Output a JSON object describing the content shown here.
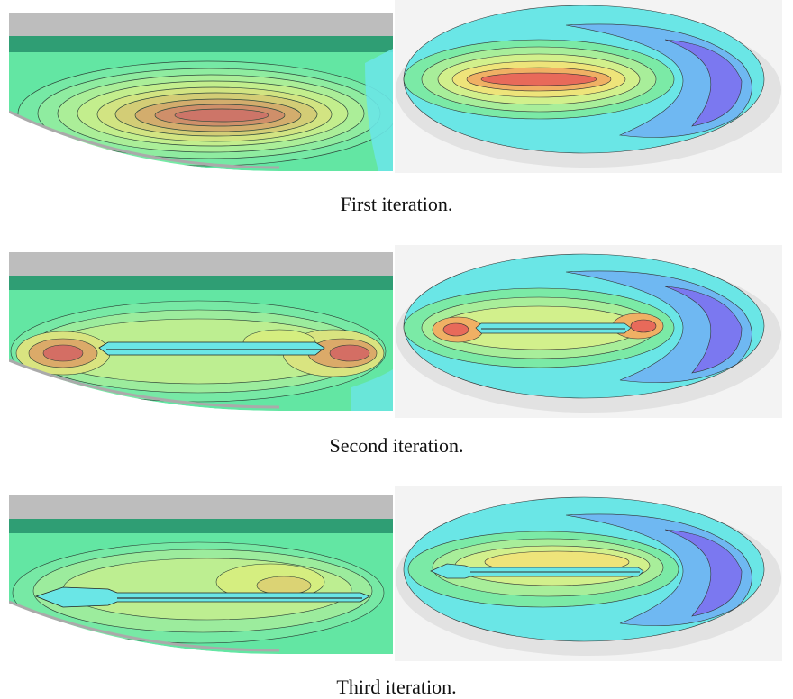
{
  "figure": {
    "rows": [
      {
        "caption": "First iteration.",
        "left_view": "side-section-contour",
        "right_view": "top-plan-contour",
        "crack": "none"
      },
      {
        "caption": "Second iteration.",
        "left_view": "side-section-contour",
        "right_view": "top-plan-contour",
        "crack": "long"
      },
      {
        "caption": "Third iteration.",
        "left_view": "side-section-contour",
        "right_view": "top-plan-contour",
        "crack": "long-hooked"
      }
    ],
    "colors": {
      "background": "#ffffff",
      "shell_gray": "#bdbdbd",
      "rim_band": "#2f9e74",
      "field_green": "#63e6a3",
      "field_yellow": "#e8f06a",
      "field_orange": "#f0b060",
      "field_red": "#e85a5a",
      "field_cyan": "#6ae6e6",
      "field_blue": "#6fa8f2",
      "field_violet": "#7b78f0"
    }
  }
}
